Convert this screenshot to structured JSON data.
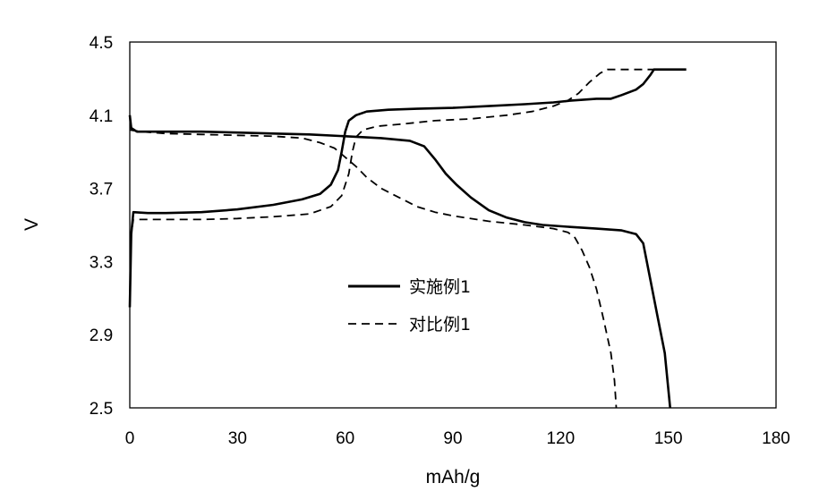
{
  "chart_data": {
    "type": "line",
    "xlabel": "mAh/g",
    "ylabel": "V",
    "xlim": [
      0,
      180
    ],
    "ylim": [
      2.5,
      4.5
    ],
    "xticks": [
      0,
      30,
      60,
      90,
      120,
      150,
      180
    ],
    "yticks": [
      "2.5",
      "2.9",
      "3.3",
      "3.7",
      "4.1",
      "4.5"
    ],
    "grid": false,
    "legend_position": "center-left",
    "series": [
      {
        "name": "实施例1",
        "style": "solid",
        "color": "#000000",
        "segments": [
          {
            "part": "charge",
            "points": [
              [
                0,
                3.05
              ],
              [
                0.4,
                3.45
              ],
              [
                1,
                3.57
              ],
              [
                5,
                3.565
              ],
              [
                10,
                3.565
              ],
              [
                20,
                3.57
              ],
              [
                30,
                3.585
              ],
              [
                40,
                3.61
              ],
              [
                48,
                3.64
              ],
              [
                53,
                3.67
              ],
              [
                56,
                3.72
              ],
              [
                58,
                3.8
              ],
              [
                59,
                3.9
              ],
              [
                60,
                4.01
              ],
              [
                61,
                4.07
              ],
              [
                63,
                4.1
              ],
              [
                66,
                4.12
              ],
              [
                72,
                4.13
              ],
              [
                80,
                4.135
              ],
              [
                90,
                4.14
              ],
              [
                100,
                4.15
              ],
              [
                110,
                4.16
              ],
              [
                118,
                4.17
              ],
              [
                123,
                4.18
              ],
              [
                130,
                4.19
              ],
              [
                134,
                4.19
              ],
              [
                137,
                4.21
              ],
              [
                141,
                4.24
              ],
              [
                143,
                4.27
              ],
              [
                145,
                4.32
              ],
              [
                146,
                4.35
              ],
              [
                150,
                4.35
              ],
              [
                155,
                4.35
              ]
            ]
          },
          {
            "part": "discharge",
            "points": [
              [
                0,
                4.1
              ],
              [
                0.4,
                4.03
              ],
              [
                2,
                4.01
              ],
              [
                10,
                4.01
              ],
              [
                20,
                4.01
              ],
              [
                30,
                4.005
              ],
              [
                40,
                4.0
              ],
              [
                50,
                3.995
              ],
              [
                60,
                3.985
              ],
              [
                70,
                3.975
              ],
              [
                78,
                3.96
              ],
              [
                82,
                3.93
              ],
              [
                85,
                3.86
              ],
              [
                88,
                3.78
              ],
              [
                91,
                3.72
              ],
              [
                95,
                3.65
              ],
              [
                100,
                3.58
              ],
              [
                105,
                3.54
              ],
              [
                110,
                3.515
              ],
              [
                115,
                3.5
              ],
              [
                122,
                3.49
              ],
              [
                130,
                3.48
              ],
              [
                137,
                3.47
              ],
              [
                141,
                3.45
              ],
              [
                143,
                3.4
              ],
              [
                144,
                3.3
              ],
              [
                145,
                3.2
              ],
              [
                147,
                3.0
              ],
              [
                149,
                2.8
              ],
              [
                150,
                2.6
              ],
              [
                150.5,
                2.5
              ]
            ]
          }
        ]
      },
      {
        "name": "对比例1",
        "style": "dashed",
        "color": "#000000",
        "segments": [
          {
            "part": "charge",
            "points": [
              [
                0,
                3.05
              ],
              [
                0.4,
                3.45
              ],
              [
                1,
                3.53
              ],
              [
                10,
                3.53
              ],
              [
                20,
                3.53
              ],
              [
                30,
                3.535
              ],
              [
                40,
                3.545
              ],
              [
                50,
                3.56
              ],
              [
                56,
                3.6
              ],
              [
                59,
                3.66
              ],
              [
                61,
                3.78
              ],
              [
                62,
                3.9
              ],
              [
                63,
                3.98
              ],
              [
                65,
                4.02
              ],
              [
                69,
                4.04
              ],
              [
                75,
                4.05
              ],
              [
                85,
                4.07
              ],
              [
                95,
                4.08
              ],
              [
                105,
                4.1
              ],
              [
                112,
                4.12
              ],
              [
                118,
                4.15
              ],
              [
                122,
                4.18
              ],
              [
                125,
                4.22
              ],
              [
                128,
                4.28
              ],
              [
                131,
                4.33
              ],
              [
                133,
                4.35
              ],
              [
                140,
                4.35
              ],
              [
                147,
                4.35
              ]
            ]
          },
          {
            "part": "discharge",
            "points": [
              [
                0,
                4.02
              ],
              [
                3,
                4.01
              ],
              [
                10,
                4.0
              ],
              [
                20,
                3.995
              ],
              [
                30,
                3.99
              ],
              [
                40,
                3.985
              ],
              [
                48,
                3.975
              ],
              [
                53,
                3.95
              ],
              [
                57,
                3.92
              ],
              [
                60,
                3.87
              ],
              [
                63,
                3.82
              ],
              [
                66,
                3.76
              ],
              [
                70,
                3.7
              ],
              [
                75,
                3.65
              ],
              [
                80,
                3.6
              ],
              [
                85,
                3.57
              ],
              [
                90,
                3.55
              ],
              [
                100,
                3.52
              ],
              [
                110,
                3.5
              ],
              [
                118,
                3.48
              ],
              [
                122,
                3.46
              ],
              [
                124,
                3.43
              ],
              [
                126,
                3.36
              ],
              [
                128,
                3.27
              ],
              [
                130,
                3.15
              ],
              [
                132,
                2.98
              ],
              [
                134,
                2.8
              ],
              [
                135,
                2.65
              ],
              [
                135.5,
                2.5
              ]
            ]
          }
        ]
      }
    ]
  }
}
